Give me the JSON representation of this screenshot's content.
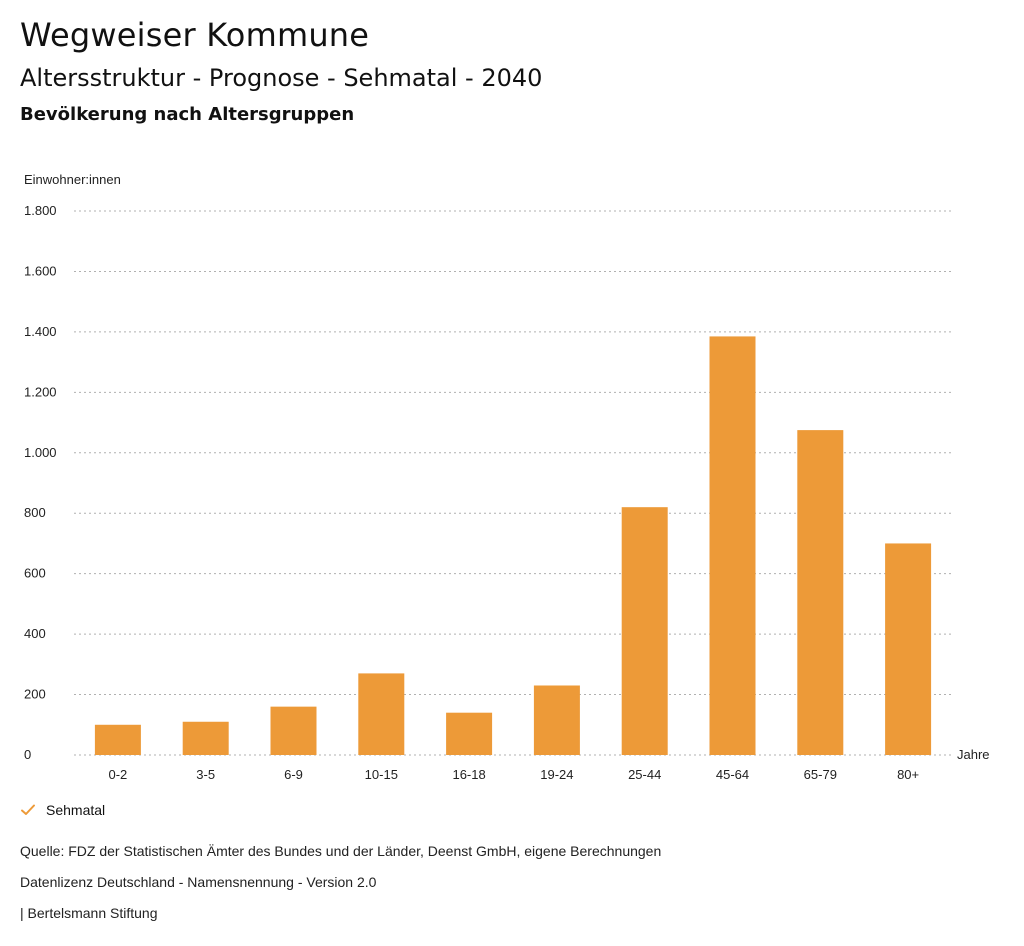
{
  "header": {
    "title": "Wegweiser Kommune",
    "subtitle": "Altersstruktur - Prognose - Sehmatal - 2040",
    "section": "Bevölkerung nach Altersgruppen"
  },
  "chart_data": {
    "type": "bar",
    "ylabel": "Einwohner:innen",
    "xlabel": "Jahre",
    "ylim": [
      0,
      1800
    ],
    "yticks": [
      0,
      200,
      400,
      600,
      800,
      1000,
      1200,
      1400,
      1600,
      1800
    ],
    "ytick_labels": [
      "0",
      "200",
      "400",
      "600",
      "800",
      "1.000",
      "1.200",
      "1.400",
      "1.600",
      "1.800"
    ],
    "grid": true,
    "categories": [
      "0-2",
      "3-5",
      "6-9",
      "10-15",
      "16-18",
      "19-24",
      "25-44",
      "45-64",
      "65-79",
      "80+"
    ],
    "series": [
      {
        "name": "Sehmatal",
        "color": "#ED9A38",
        "values": [
          100,
          110,
          160,
          270,
          140,
          230,
          820,
          1385,
          1075,
          700
        ]
      }
    ]
  },
  "legend": {
    "label": "Sehmatal",
    "icon": "check-icon",
    "color": "#ED9A38"
  },
  "footer": {
    "source": "Quelle: FDZ der Statistischen Ämter des Bundes und der Länder, Deenst GmbH, eigene Berechnungen",
    "license": "Datenlizenz Deutschland - Namensnennung - Version 2.0",
    "publisher": "| Bertelsmann Stiftung"
  }
}
